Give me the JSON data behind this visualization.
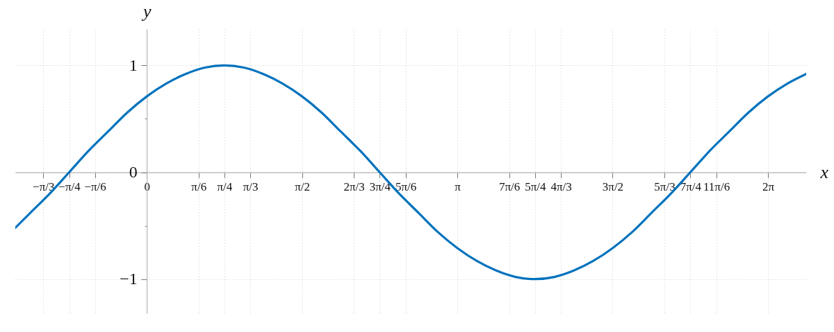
{
  "chart_data": {
    "type": "line",
    "xlabel": "x",
    "ylabel": "y",
    "x": [
      -1.33,
      -1.178,
      -0.982,
      -0.785,
      -0.589,
      -0.393,
      -0.196,
      0,
      0.196,
      0.393,
      0.589,
      0.785,
      0.982,
      1.178,
      1.374,
      1.571,
      1.767,
      1.963,
      2.16,
      2.356,
      2.553,
      2.749,
      2.945,
      3.142,
      3.338,
      3.534,
      3.731,
      3.927,
      4.123,
      4.32,
      4.516,
      4.712,
      4.909,
      5.105,
      5.301,
      5.498,
      5.694,
      5.89,
      6.087,
      6.283,
      6.48,
      6.67
    ],
    "series": [
      {
        "color": "#0072bd",
        "values": [
          -0.52,
          -0.38,
          -0.2,
          0,
          0.2,
          0.38,
          0.56,
          0.71,
          0.83,
          0.92,
          0.98,
          1,
          0.98,
          0.92,
          0.83,
          0.71,
          0.56,
          0.38,
          0.2,
          0,
          -0.2,
          -0.38,
          -0.56,
          -0.71,
          -0.83,
          -0.92,
          -0.98,
          -1,
          -0.98,
          -0.92,
          -0.83,
          -0.71,
          -0.56,
          -0.38,
          -0.2,
          0,
          0.2,
          0.38,
          0.56,
          0.71,
          0.83,
          0.92
        ]
      }
    ],
    "xlim": [
      -1.33,
      6.67
    ],
    "ylim": [
      -1.32,
      1.34
    ],
    "xticks": [
      {
        "value": -1.047,
        "label": "−π/3"
      },
      {
        "value": -0.785,
        "label": "−π/4"
      },
      {
        "value": -0.524,
        "label": "−π/6"
      },
      0,
      {
        "value": 0.524,
        "label": "π/6"
      },
      {
        "value": 0.785,
        "label": "π/4"
      },
      {
        "value": 1.047,
        "label": "π/3"
      },
      {
        "value": 1.571,
        "label": "π/2"
      },
      {
        "value": 2.094,
        "label": "2π/3"
      },
      {
        "value": 2.356,
        "label": "3π/4"
      },
      {
        "value": 2.618,
        "label": "5π/6"
      },
      {
        "value": 3.142,
        "label": "π"
      },
      {
        "value": 3.665,
        "label": "7π/6"
      },
      {
        "value": 3.927,
        "label": "5π/4"
      },
      {
        "value": 4.189,
        "label": "4π/3"
      },
      {
        "value": 4.712,
        "label": "3π/2"
      },
      {
        "value": 5.236,
        "label": "5π/3"
      },
      {
        "value": 5.498,
        "label": "7π/4"
      },
      {
        "value": 5.76,
        "label": "11π/6"
      },
      {
        "value": 6.283,
        "label": "2π"
      }
    ],
    "yticks": [
      -1,
      {
        "value": -0.5,
        "label": null
      },
      0,
      {
        "value": 0.5,
        "label": null
      },
      1
    ],
    "grid": true
  }
}
